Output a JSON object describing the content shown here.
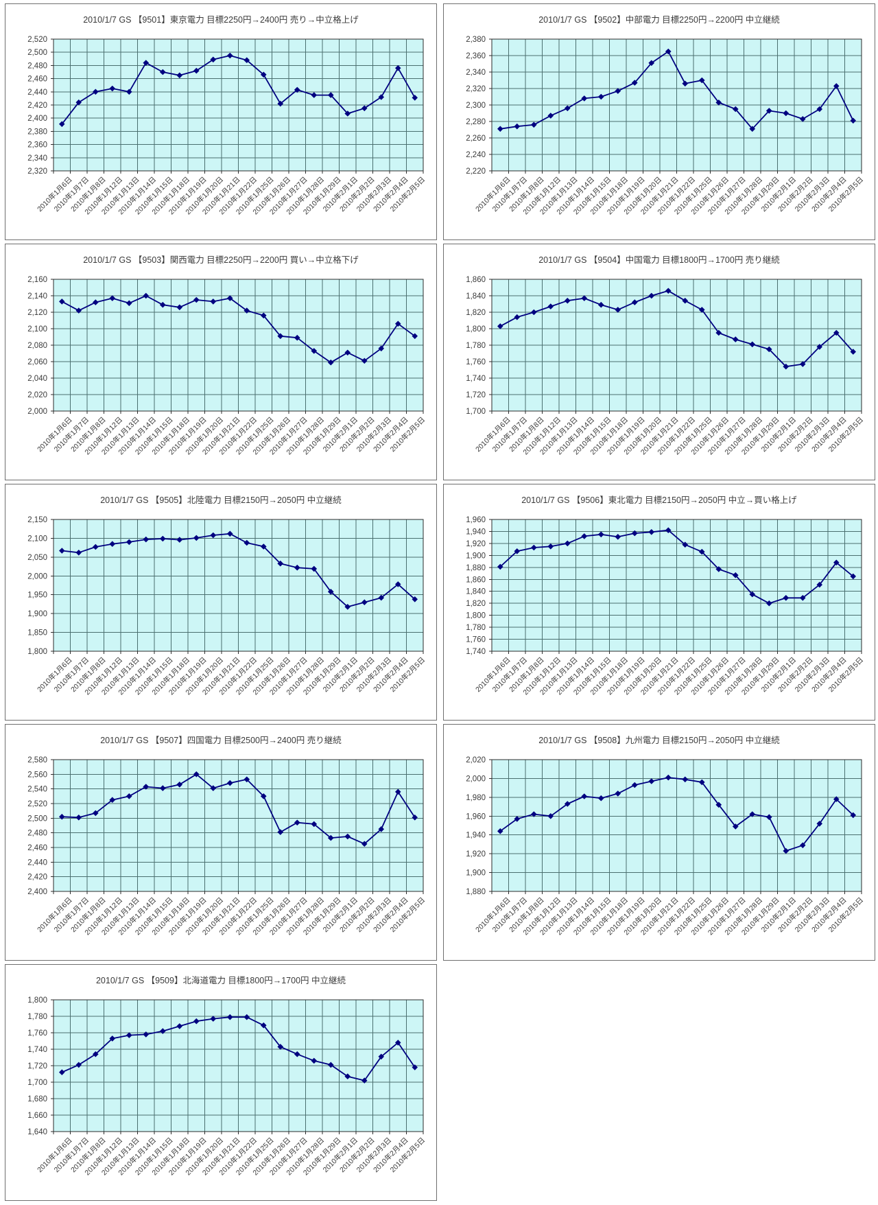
{
  "style": {
    "page_background": "#ffffff",
    "plot_bg": "#CDF6F6",
    "grid_color": "#4A6F6F",
    "axis_color": "#2b2b2b",
    "series_color": "#000080",
    "text_color": "#3a3a3a"
  },
  "chart_data": [
    {
      "type": "line",
      "code": "9501",
      "company": "東京電力",
      "title": "2010/1/7 GS 【9501】東京電力 目標2250円→2400円 売り→中立格上げ",
      "xlabel": "",
      "ylabel": "",
      "ylim": [
        2320,
        2520
      ],
      "y_step": 20,
      "grid": true,
      "legend": "none",
      "categories": [
        "2010年1月6日",
        "2010年1月7日",
        "2010年1月8日",
        "2010年1月12日",
        "2010年1月13日",
        "2010年1月14日",
        "2010年1月15日",
        "2010年1月18日",
        "2010年1月19日",
        "2010年1月20日",
        "2010年1月21日",
        "2010年1月22日",
        "2010年1月25日",
        "2010年1月26日",
        "2010年1月27日",
        "2010年1月28日",
        "2010年1月29日",
        "2010年2月1日",
        "2010年2月2日",
        "2010年2月3日",
        "2010年2月4日",
        "2010年2月5日"
      ],
      "values": [
        2391,
        2424,
        2440,
        2445,
        2440,
        2484,
        2470,
        2465,
        2472,
        2489,
        2495,
        2488,
        2466,
        2422,
        2443,
        2435,
        2435,
        2407,
        2415,
        2432,
        2476,
        2431
      ]
    },
    {
      "type": "line",
      "code": "9502",
      "company": "中部電力",
      "title": "2010/1/7 GS 【9502】中部電力 目標2250円→2200円 中立継続",
      "xlabel": "",
      "ylabel": "",
      "ylim": [
        2220,
        2380
      ],
      "y_step": 20,
      "grid": true,
      "legend": "none",
      "categories": [
        "2010年1月6日",
        "2010年1月7日",
        "2010年1月8日",
        "2010年1月12日",
        "2010年1月13日",
        "2010年1月14日",
        "2010年1月15日",
        "2010年1月18日",
        "2010年1月19日",
        "2010年1月20日",
        "2010年1月21日",
        "2010年1月22日",
        "2010年1月25日",
        "2010年1月26日",
        "2010年1月27日",
        "2010年1月28日",
        "2010年1月29日",
        "2010年2月1日",
        "2010年2月2日",
        "2010年2月3日",
        "2010年2月4日",
        "2010年2月5日"
      ],
      "values": [
        2271,
        2274,
        2276,
        2287,
        2296,
        2308,
        2310,
        2317,
        2327,
        2351,
        2365,
        2326,
        2330,
        2303,
        2295,
        2271,
        2293,
        2290,
        2283,
        2295,
        2323,
        2281
      ]
    },
    {
      "type": "line",
      "code": "9503",
      "company": "関西電力",
      "title": "2010/1/7 GS 【9503】関西電力 目標2250円→2200円 買い→中立格下げ",
      "xlabel": "",
      "ylabel": "",
      "ylim": [
        2000,
        2160
      ],
      "y_step": 20,
      "grid": true,
      "legend": "none",
      "categories": [
        "2010年1月6日",
        "2010年1月7日",
        "2010年1月8日",
        "2010年1月12日",
        "2010年1月13日",
        "2010年1月14日",
        "2010年1月15日",
        "2010年1月18日",
        "2010年1月19日",
        "2010年1月20日",
        "2010年1月21日",
        "2010年1月22日",
        "2010年1月25日",
        "2010年1月26日",
        "2010年1月27日",
        "2010年1月28日",
        "2010年1月29日",
        "2010年2月1日",
        "2010年2月2日",
        "2010年2月3日",
        "2010年2月4日",
        "2010年2月5日"
      ],
      "values": [
        2133,
        2122,
        2132,
        2137,
        2131,
        2140,
        2129,
        2126,
        2135,
        2133,
        2137,
        2122,
        2116,
        2091,
        2089,
        2073,
        2059,
        2071,
        2061,
        2076,
        2106,
        2091
      ]
    },
    {
      "type": "line",
      "code": "9504",
      "company": "中国電力",
      "title": "2010/1/7 GS 【9504】中国電力 目標1800円→1700円 売り継続",
      "xlabel": "",
      "ylabel": "",
      "ylim": [
        1700,
        1860
      ],
      "y_step": 20,
      "grid": true,
      "legend": "none",
      "categories": [
        "2010年1月6日",
        "2010年1月7日",
        "2010年1月8日",
        "2010年1月12日",
        "2010年1月13日",
        "2010年1月14日",
        "2010年1月15日",
        "2010年1月18日",
        "2010年1月19日",
        "2010年1月20日",
        "2010年1月21日",
        "2010年1月22日",
        "2010年1月25日",
        "2010年1月26日",
        "2010年1月27日",
        "2010年1月28日",
        "2010年1月29日",
        "2010年2月1日",
        "2010年2月2日",
        "2010年2月3日",
        "2010年2月4日",
        "2010年2月5日"
      ],
      "values": [
        1803,
        1814,
        1820,
        1827,
        1834,
        1837,
        1829,
        1823,
        1832,
        1840,
        1846,
        1834,
        1823,
        1795,
        1787,
        1781,
        1775,
        1754,
        1757,
        1778,
        1795,
        1772
      ]
    },
    {
      "type": "line",
      "code": "9505",
      "company": "北陸電力",
      "title": "2010/1/7 GS 【9505】北陸電力 目標2150円→2050円 中立継続",
      "xlabel": "",
      "ylabel": "",
      "ylim": [
        1800,
        2150
      ],
      "y_step": 50,
      "grid": true,
      "legend": "none",
      "categories": [
        "2010年1月6日",
        "2010年1月7日",
        "2010年1月8日",
        "2010年1月12日",
        "2010年1月13日",
        "2010年1月14日",
        "2010年1月15日",
        "2010年1月18日",
        "2010年1月19日",
        "2010年1月20日",
        "2010年1月21日",
        "2010年1月22日",
        "2010年1月25日",
        "2010年1月26日",
        "2010年1月27日",
        "2010年1月28日",
        "2010年1月29日",
        "2010年2月1日",
        "2010年2月2日",
        "2010年2月3日",
        "2010年2月4日",
        "2010年2月5日"
      ],
      "values": [
        2067,
        2062,
        2077,
        2085,
        2090,
        2097,
        2099,
        2096,
        2101,
        2108,
        2112,
        2088,
        2078,
        2033,
        2022,
        2019,
        1958,
        1918,
        1930,
        1942,
        1978,
        1938
      ]
    },
    {
      "type": "line",
      "code": "9506",
      "company": "東北電力",
      "title": "2010/1/7 GS 【9506】東北電力 目標2150円→2050円 中立→買い格上げ",
      "xlabel": "",
      "ylabel": "",
      "ylim": [
        1740,
        1960
      ],
      "y_step": 20,
      "grid": true,
      "legend": "none",
      "categories": [
        "2010年1月6日",
        "2010年1月7日",
        "2010年1月8日",
        "2010年1月12日",
        "2010年1月13日",
        "2010年1月14日",
        "2010年1月15日",
        "2010年1月18日",
        "2010年1月19日",
        "2010年1月20日",
        "2010年1月21日",
        "2010年1月22日",
        "2010年1月25日",
        "2010年1月26日",
        "2010年1月27日",
        "2010年1月28日",
        "2010年1月29日",
        "2010年2月1日",
        "2010年2月2日",
        "2010年2月3日",
        "2010年2月4日",
        "2010年2月5日"
      ],
      "values": [
        1881,
        1907,
        1913,
        1915,
        1920,
        1932,
        1935,
        1931,
        1937,
        1939,
        1942,
        1918,
        1906,
        1877,
        1867,
        1835,
        1820,
        1829,
        1829,
        1851,
        1888,
        1865
      ]
    },
    {
      "type": "line",
      "code": "9507",
      "company": "四国電力",
      "title": "2010/1/7 GS 【9507】四国電力 目標2500円→2400円 売り継続",
      "xlabel": "",
      "ylabel": "",
      "ylim": [
        2400,
        2580
      ],
      "y_step": 20,
      "grid": true,
      "legend": "none",
      "categories": [
        "2010年1月6日",
        "2010年1月7日",
        "2010年1月8日",
        "2010年1月12日",
        "2010年1月13日",
        "2010年1月14日",
        "2010年1月15日",
        "2010年1月18日",
        "2010年1月19日",
        "2010年1月20日",
        "2010年1月21日",
        "2010年1月22日",
        "2010年1月25日",
        "2010年1月26日",
        "2010年1月27日",
        "2010年1月28日",
        "2010年1月29日",
        "2010年2月1日",
        "2010年2月2日",
        "2010年2月3日",
        "2010年2月4日",
        "2010年2月5日"
      ],
      "values": [
        2502,
        2501,
        2507,
        2525,
        2530,
        2543,
        2541,
        2546,
        2560,
        2541,
        2548,
        2553,
        2530,
        2481,
        2494,
        2492,
        2473,
        2475,
        2465,
        2485,
        2536,
        2501
      ]
    },
    {
      "type": "line",
      "code": "9508",
      "company": "九州電力",
      "title": "2010/1/7 GS 【9508】九州電力 目標2150円→2050円 中立継続",
      "xlabel": "",
      "ylabel": "",
      "ylim": [
        1880,
        2020
      ],
      "y_step": 20,
      "grid": true,
      "legend": "none",
      "categories": [
        "2010年1月6日",
        "2010年1月7日",
        "2010年1月8日",
        "2010年1月12日",
        "2010年1月13日",
        "2010年1月14日",
        "2010年1月15日",
        "2010年1月18日",
        "2010年1月19日",
        "2010年1月20日",
        "2010年1月21日",
        "2010年1月22日",
        "2010年1月25日",
        "2010年1月26日",
        "2010年1月27日",
        "2010年1月28日",
        "2010年1月29日",
        "2010年2月1日",
        "2010年2月2日",
        "2010年2月3日",
        "2010年2月4日",
        "2010年2月5日"
      ],
      "values": [
        1944,
        1957,
        1962,
        1960,
        1973,
        1981,
        1979,
        1984,
        1993,
        1997,
        2001,
        1999,
        1996,
        1972,
        1949,
        1962,
        1959,
        1923,
        1929,
        1952,
        1978,
        1961
      ]
    },
    {
      "type": "line",
      "code": "9509",
      "company": "北海道電力",
      "title": "2010/1/7 GS 【9509】北海道電力 目標1800円→1700円 中立継続",
      "xlabel": "",
      "ylabel": "",
      "ylim": [
        1640,
        1800
      ],
      "y_step": 20,
      "grid": true,
      "legend": "none",
      "categories": [
        "2010年1月6日",
        "2010年1月7日",
        "2010年1月8日",
        "2010年1月12日",
        "2010年1月13日",
        "2010年1月14日",
        "2010年1月15日",
        "2010年1月18日",
        "2010年1月19日",
        "2010年1月20日",
        "2010年1月21日",
        "2010年1月22日",
        "2010年1月25日",
        "2010年1月26日",
        "2010年1月27日",
        "2010年1月28日",
        "2010年1月29日",
        "2010年2月1日",
        "2010年2月2日",
        "2010年2月3日",
        "2010年2月4日",
        "2010年2月5日"
      ],
      "values": [
        1712,
        1721,
        1734,
        1753,
        1757,
        1758,
        1762,
        1768,
        1774,
        1777,
        1779,
        1779,
        1769,
        1743,
        1734,
        1726,
        1721,
        1707,
        1702,
        1731,
        1748,
        1718
      ]
    }
  ]
}
